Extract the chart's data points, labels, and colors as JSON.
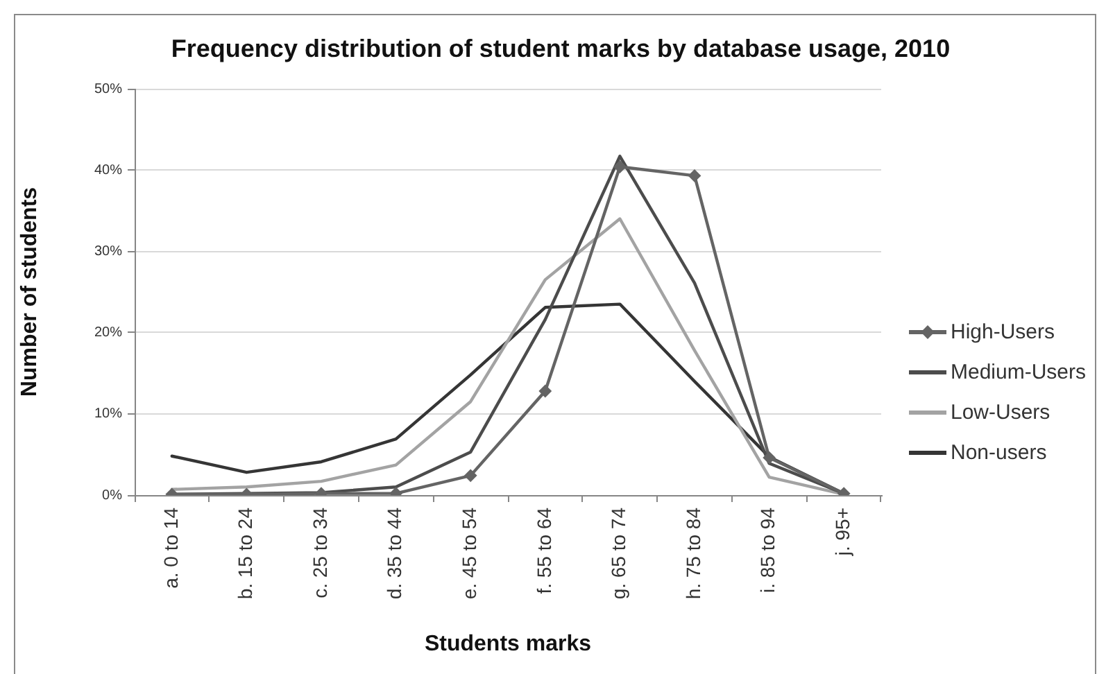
{
  "chart_data": {
    "type": "line",
    "title": "Frequency distribution of student marks by database usage, 2010",
    "xlabel": "Students marks",
    "ylabel": "Number of students",
    "categories": [
      "a. 0 to 14",
      "b. 15 to 24",
      "c. 25 to 34",
      "d. 35 to 44",
      "e. 45 to 54",
      "f. 55 to 64",
      "g. 65 to 74",
      "h. 75 to 84",
      "i. 85 to 94",
      "j. 95+"
    ],
    "series": [
      {
        "name": "High-Users",
        "color": "#646464",
        "marker": "diamond",
        "values": [
          0.1,
          0.1,
          0.2,
          0.2,
          2.4,
          12.8,
          40.4,
          39.3,
          4.6,
          0.2
        ]
      },
      {
        "name": "Medium-Users",
        "color": "#4c4c4c",
        "values": [
          0.1,
          0.2,
          0.3,
          1.0,
          5.3,
          21.6,
          41.7,
          26.1,
          3.9,
          0.2
        ]
      },
      {
        "name": "Low-Users",
        "color": "#a3a3a3",
        "values": [
          0.7,
          1.0,
          1.7,
          3.7,
          11.5,
          26.5,
          34.0,
          17.8,
          2.2,
          0.1
        ]
      },
      {
        "name": "Non-users",
        "color": "#353535",
        "values": [
          4.8,
          2.8,
          4.1,
          6.9,
          14.8,
          23.1,
          23.5,
          14.0,
          4.7,
          0.2
        ]
      }
    ],
    "ylim": [
      0,
      50
    ],
    "yticks": [
      {
        "value": 0,
        "label": "0%"
      },
      {
        "value": 10,
        "label": "10%"
      },
      {
        "value": 20,
        "label": "20%"
      },
      {
        "value": 30,
        "label": "30%"
      },
      {
        "value": 40,
        "label": "40%"
      },
      {
        "value": 50,
        "label": "50%"
      }
    ],
    "grid": "y",
    "legend": "right"
  }
}
